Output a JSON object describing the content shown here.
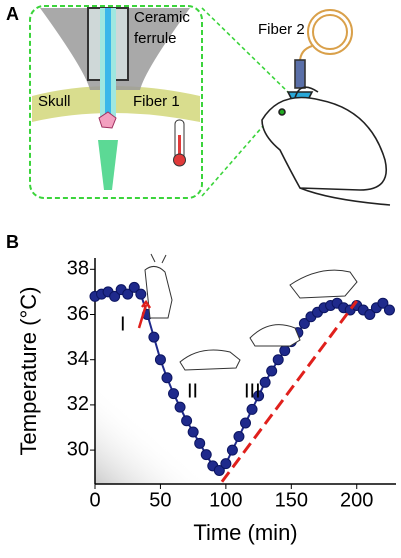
{
  "panel_a": {
    "label": "A",
    "ceramic_ferrule": [
      "Ceramic",
      "ferrule"
    ],
    "skull": "Skull",
    "fiber_1": "Fiber 1",
    "fiber_2": "Fiber 2"
  },
  "panel_b": {
    "label": "B"
  },
  "chart_data": {
    "type": "scatter",
    "x_label": "Time (min)",
    "y_label": "Temperature (°C)",
    "annotations": [
      "I",
      "II",
      "III"
    ],
    "xlim": [
      0,
      230
    ],
    "ylim": [
      28.5,
      38.5
    ],
    "xticks": [
      0,
      50,
      100,
      150,
      200
    ],
    "yticks": [
      30,
      32,
      34,
      36,
      38
    ],
    "series": [
      {
        "color": "#1f2a8c",
        "x": [
          0,
          5,
          10,
          15,
          20,
          25,
          30,
          35,
          40,
          45,
          50,
          55,
          60,
          65,
          70,
          75,
          80,
          85,
          90,
          95,
          100,
          105,
          110,
          115,
          120,
          125,
          130,
          135,
          140,
          145,
          150,
          155,
          160,
          165,
          170,
          175,
          180,
          185,
          190,
          195,
          200,
          205,
          210,
          215,
          220,
          225
        ],
        "values": [
          36.8,
          36.9,
          37.0,
          36.8,
          37.1,
          36.9,
          37.2,
          36.9,
          36.0,
          35.0,
          34.0,
          33.2,
          32.5,
          31.9,
          31.3,
          30.8,
          30.3,
          29.8,
          29.3,
          29.1,
          29.4,
          30.0,
          30.6,
          31.2,
          31.8,
          32.4,
          33.0,
          33.5,
          34.0,
          34.4,
          34.8,
          35.2,
          35.6,
          35.9,
          36.1,
          36.3,
          36.4,
          36.5,
          36.3,
          36.2,
          36.4,
          36.2,
          36.0,
          36.3,
          36.5,
          36.2
        ]
      },
      {
        "color": "#e0201c",
        "x": [
          97,
          200
        ],
        "values": [
          28.6,
          36.6
        ]
      }
    ]
  }
}
